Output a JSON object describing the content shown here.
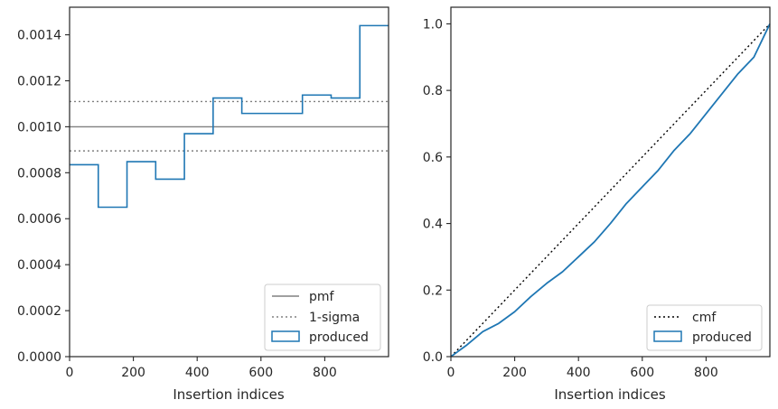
{
  "chart_data": [
    {
      "type": "histogram",
      "xlabel": "Insertion indices",
      "ylabel": "",
      "xlim": [
        0,
        1000
      ],
      "ylim": [
        0,
        0.00152
      ],
      "xticks": [
        0,
        200,
        400,
        600,
        800
      ],
      "xtick_labels": [
        "0",
        "200",
        "400",
        "600",
        "800"
      ],
      "yticks": [
        0,
        0.0002,
        0.0004,
        0.0006,
        0.0008,
        0.001,
        0.0012,
        0.0014
      ],
      "ytick_labels": [
        "0.0000",
        "0.0002",
        "0.0004",
        "0.0006",
        "0.0008",
        "0.0010",
        "0.0012",
        "0.0014"
      ],
      "grid": false,
      "legend_position": "lower right",
      "series": [
        {
          "name": "pmf",
          "kind": "hline",
          "value": 0.001,
          "color": "#808080",
          "linestyle": "solid"
        },
        {
          "name": "1-sigma",
          "kind": "hlines",
          "values": [
            0.00111,
            0.000895
          ],
          "color": "#808080",
          "linestyle": "dotted"
        },
        {
          "name": "produced",
          "kind": "step-histogram",
          "color": "#1f77b4",
          "bin_edges": [
            0,
            90,
            180,
            270,
            360,
            450,
            540,
            640,
            730,
            820,
            910,
            1000
          ],
          "values": [
            0.000835,
            0.00065,
            0.000848,
            0.000772,
            0.00097,
            0.001125,
            0.001058,
            0.001058,
            0.001138,
            0.001125,
            0.00144
          ]
        }
      ]
    },
    {
      "type": "line",
      "xlabel": "Insertion indices",
      "ylabel": "",
      "xlim": [
        0,
        1000
      ],
      "ylim": [
        0,
        1.05
      ],
      "xticks": [
        0,
        200,
        400,
        600,
        800
      ],
      "xtick_labels": [
        "0",
        "200",
        "400",
        "600",
        "800"
      ],
      "yticks": [
        0,
        0.2,
        0.4,
        0.6,
        0.8,
        1.0
      ],
      "ytick_labels": [
        "0.0",
        "0.2",
        "0.4",
        "0.6",
        "0.8",
        "1.0"
      ],
      "grid": false,
      "legend_position": "lower right",
      "series": [
        {
          "name": "cmf",
          "color": "#000000",
          "linestyle": "dotted",
          "x": [
            0,
            1000
          ],
          "y": [
            0,
            1
          ]
        },
        {
          "name": "produced",
          "color": "#1f77b4",
          "linestyle": "step",
          "x": [
            0,
            50,
            100,
            150,
            200,
            250,
            300,
            350,
            400,
            450,
            500,
            550,
            600,
            650,
            700,
            750,
            800,
            850,
            900,
            950,
            1000
          ],
          "y": [
            0,
            0.035,
            0.075,
            0.1,
            0.135,
            0.18,
            0.22,
            0.255,
            0.3,
            0.345,
            0.4,
            0.46,
            0.51,
            0.56,
            0.62,
            0.67,
            0.73,
            0.79,
            0.85,
            0.9,
            1.0
          ]
        }
      ]
    }
  ]
}
